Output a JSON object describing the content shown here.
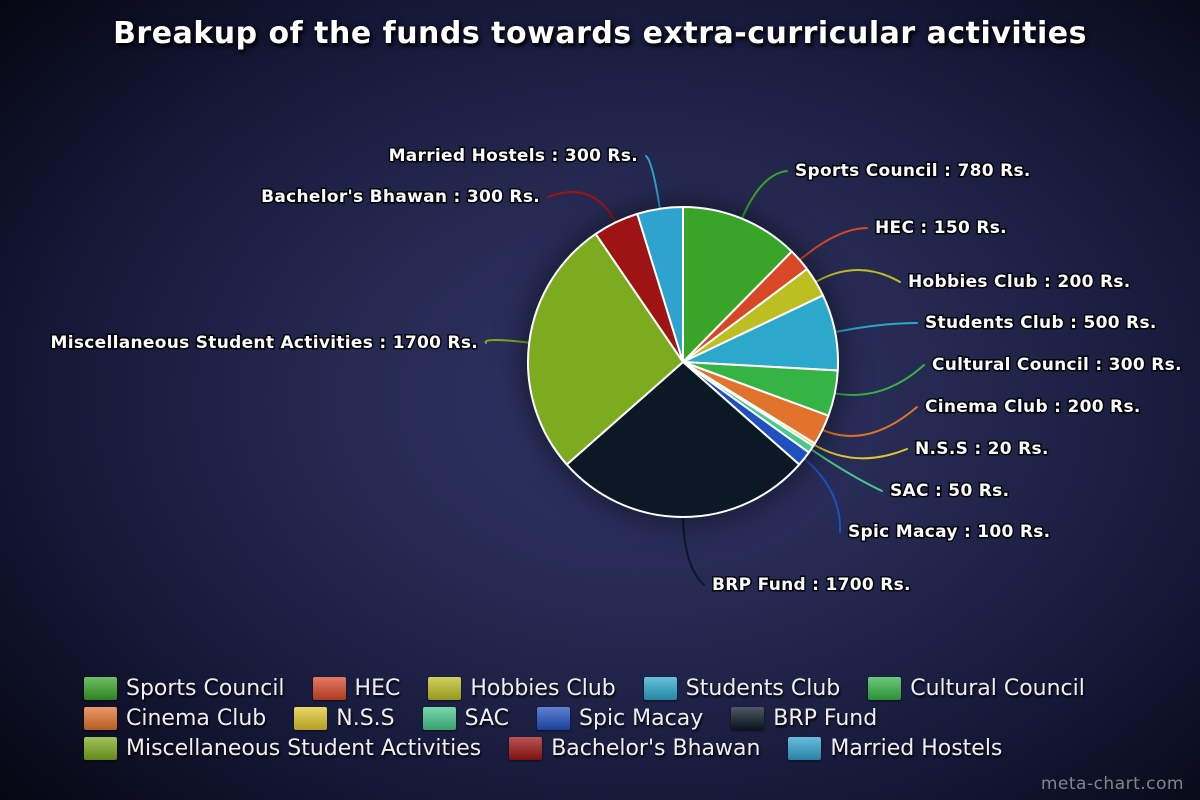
{
  "title": "Breakup of the funds towards extra-curricular activities",
  "watermark": "meta-chart.com",
  "chart_data": {
    "type": "pie",
    "title": "Breakup of the funds towards extra-curricular activities",
    "unit": "Rs.",
    "total": 6300,
    "legend_position": "bottom",
    "start_angle_deg": 0,
    "direction": "clockwise",
    "slices": [
      {
        "label": "Sports Council",
        "value": 780,
        "color": "#38a428",
        "annotation": "Sports Council : 780 Rs."
      },
      {
        "label": "HEC",
        "value": 150,
        "color": "#d84826",
        "annotation": "HEC : 150 Rs."
      },
      {
        "label": "Hobbies Club",
        "value": 200,
        "color": "#bcbe22",
        "annotation": "Hobbies Club : 200 Rs."
      },
      {
        "label": "Students Club",
        "value": 500,
        "color": "#2ca8cd",
        "annotation": "Students Club : 500 Rs."
      },
      {
        "label": "Cultural Council",
        "value": 300,
        "color": "#35b345",
        "annotation": "Cultural Council : 300 Rs."
      },
      {
        "label": "Cinema Club",
        "value": 200,
        "color": "#e2732c",
        "annotation": "Cinema Club : 200 Rs."
      },
      {
        "label": "N.S.S",
        "value": 20,
        "color": "#e0c72e",
        "annotation": "N.S.S : 20 Rs."
      },
      {
        "label": "SAC",
        "value": 50,
        "color": "#46c98c",
        "annotation": "SAC : 50 Rs."
      },
      {
        "label": "Spic Macay",
        "value": 100,
        "color": "#2050c0",
        "annotation": "Spic Macay : 100 Rs."
      },
      {
        "label": "BRP Fund",
        "value": 1700,
        "color": "#0b1826",
        "annotation": "BRP Fund : 1700 Rs."
      },
      {
        "label": "Miscellaneous Student Activities",
        "value": 1700,
        "color": "#7cab1f",
        "annotation": "Miscellaneous Student Activities : 1700 Rs."
      },
      {
        "label": "Bachelor's Bhawan",
        "value": 300,
        "color": "#9e1313",
        "annotation": "Bachelor's Bhawan : 300 Rs."
      },
      {
        "label": "Married Hostels",
        "value": 300,
        "color": "#2fa3cf",
        "annotation": "Married Hostels : 300 Rs."
      }
    ]
  }
}
